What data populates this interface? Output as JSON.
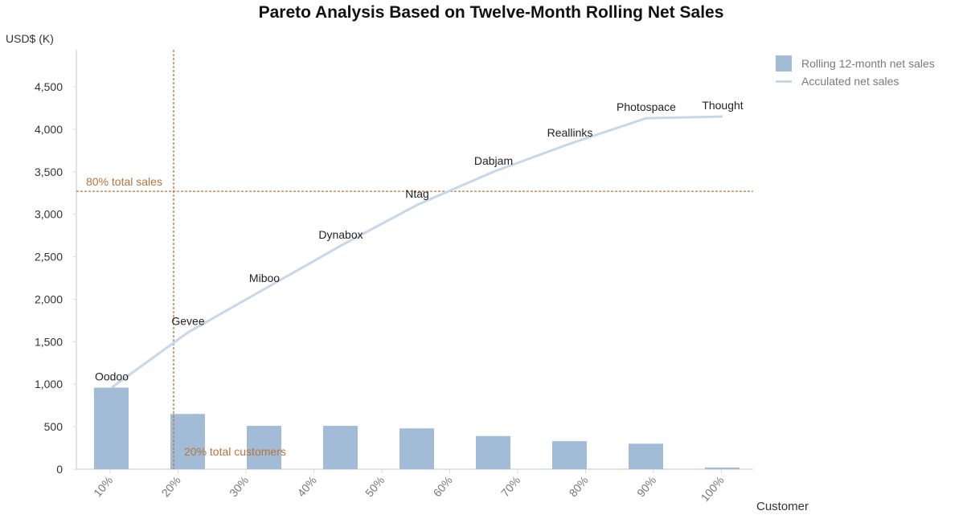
{
  "chart_data": {
    "type": "bar+line",
    "title": "Pareto Analysis Based on Twelve-Month Rolling Net Sales",
    "ylabel": "USD$ (K)",
    "xlabel": "Customer",
    "ylim": [
      0,
      4500
    ],
    "yticks": [
      0,
      500,
      1000,
      1500,
      2000,
      2500,
      3000,
      3500,
      4000,
      4500
    ],
    "ytick_labels": [
      "0",
      "500",
      "1,000",
      "1,500",
      "2,000",
      "2,500",
      "3,000",
      "3,500",
      "4,000",
      "4,500"
    ],
    "xtick_labels": [
      "10%",
      "20%",
      "30%",
      "40%",
      "50%",
      "60%",
      "70%",
      "80%",
      "90%",
      "100%"
    ],
    "customers": [
      "Oodoo",
      "Gevee",
      "Miboo",
      "Dynabox",
      "Ntag",
      "Dabjam",
      "Reallinks",
      "Photospace",
      "Thought"
    ],
    "series": [
      {
        "name": "Rolling 12-month net sales",
        "type": "bar",
        "color": "#a2bbd6",
        "values": [
          960,
          650,
          510,
          510,
          480,
          390,
          330,
          300,
          20
        ]
      },
      {
        "name": "Acculated net sales",
        "type": "line",
        "color": "#c7d7ea",
        "values": [
          960,
          1610,
          2120,
          2630,
          3110,
          3500,
          3830,
          4130,
          4150
        ]
      }
    ],
    "reference_lines": [
      {
        "orientation": "horizontal",
        "value": 3270,
        "label": "80% total sales",
        "color": "#b8743a"
      },
      {
        "orientation": "vertical",
        "at": "20%",
        "label": "20% total customers",
        "color": "#b8743a"
      }
    ],
    "legend_position": "top-right",
    "grid": false
  },
  "legend": {
    "items": [
      {
        "label": "Rolling 12-month net sales"
      },
      {
        "label": "Acculated net sales"
      }
    ]
  }
}
